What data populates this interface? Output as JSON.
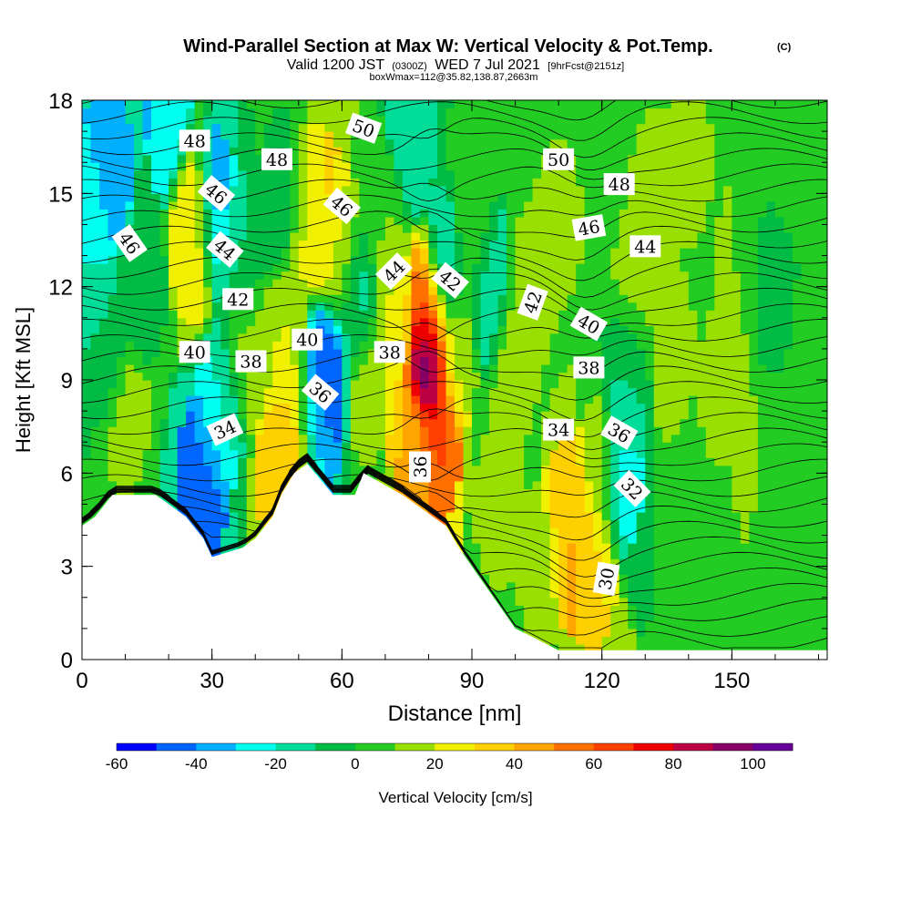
{
  "chart_data": {
    "type": "heatmap",
    "title": "Wind-Parallel Section at Max W: Vertical Velocity & Pot.Temp.",
    "copyright_mark": "(C)",
    "subtitle_main": "Valid 1200 JST",
    "subtitle_utc": "(0300Z)",
    "subtitle_date": "WED 7 Jul 2021",
    "subtitle_fcst": "[9hrFcst@2151z]",
    "subtitle2": "boxWmax=112@35.82,138.87,2663m",
    "xlabel": "Distance [nm]",
    "ylabel": "Height [Kft MSL]",
    "xlim": [
      0,
      172
    ],
    "ylim": [
      0,
      18
    ],
    "x_ticks": [
      0,
      30,
      60,
      90,
      120,
      150
    ],
    "y_ticks": [
      0,
      3,
      6,
      9,
      12,
      15,
      18
    ],
    "x_minor_step": 10,
    "y_minor_step": 1,
    "colorbar": {
      "label": "Vertical Velocity [cm/s]",
      "ticks": [
        -60,
        -40,
        -20,
        0,
        20,
        40,
        60,
        80,
        100
      ],
      "bounds": [
        -60,
        110
      ],
      "step": 10,
      "colors": [
        "#0000ff",
        "#0066ff",
        "#00b0ff",
        "#00ffee",
        "#00dd99",
        "#00bb44",
        "#22cc22",
        "#99e000",
        "#f0f000",
        "#ffd000",
        "#ffa500",
        "#ff7000",
        "#ff4000",
        "#ee0000",
        "#bb0044",
        "#880066",
        "#660099"
      ]
    },
    "w_cells": [
      {
        "x": 2,
        "z": 14.5,
        "w": -20
      },
      {
        "x": 6,
        "z": 16,
        "w": -40
      },
      {
        "x": 6,
        "z": 10,
        "w": -10
      },
      {
        "x": 10,
        "z": 8,
        "w": 15
      },
      {
        "x": 14,
        "z": 12,
        "w": -5
      },
      {
        "x": 20,
        "z": 17.5,
        "w": -30
      },
      {
        "x": 26,
        "z": 14.5,
        "w": 28
      },
      {
        "x": 26,
        "z": 13.5,
        "w": 30
      },
      {
        "x": 30,
        "z": 14.5,
        "w": -40
      },
      {
        "x": 28,
        "z": 6,
        "w": -40
      },
      {
        "x": 27,
        "z": 4.8,
        "w": -50
      },
      {
        "x": 32,
        "z": 8,
        "w": -20
      },
      {
        "x": 36,
        "z": 13,
        "w": -10
      },
      {
        "x": 38,
        "z": 10,
        "w": 12
      },
      {
        "x": 46,
        "z": 5.8,
        "w": 40
      },
      {
        "x": 49,
        "z": 7,
        "w": 35
      },
      {
        "x": 48,
        "z": 10,
        "w": 20
      },
      {
        "x": 46,
        "z": 15,
        "w": -5
      },
      {
        "x": 52,
        "z": 14.5,
        "w": 20
      },
      {
        "x": 56,
        "z": 14.2,
        "w": 33
      },
      {
        "x": 56,
        "z": 9,
        "w": -50
      },
      {
        "x": 54,
        "z": 7.5,
        "w": -30
      },
      {
        "x": 60,
        "z": 13,
        "w": 15
      },
      {
        "x": 64,
        "z": 11.5,
        "w": -15
      },
      {
        "x": 66,
        "z": 9,
        "w": 15
      },
      {
        "x": 70,
        "z": 14,
        "w": 10
      },
      {
        "x": 72,
        "z": 11,
        "w": 22
      },
      {
        "x": 76,
        "z": 17,
        "w": -20
      },
      {
        "x": 76.5,
        "z": 7,
        "w": 40
      },
      {
        "x": 80,
        "z": 9.5,
        "w": 112
      },
      {
        "x": 80,
        "z": 11,
        "w": 55
      },
      {
        "x": 82,
        "z": 7,
        "w": 60
      },
      {
        "x": 84,
        "z": 12.5,
        "w": -20
      },
      {
        "x": 86,
        "z": 10,
        "w": 18
      },
      {
        "x": 90,
        "z": 14,
        "w": 10
      },
      {
        "x": 94,
        "z": 12,
        "w": -15
      },
      {
        "x": 96,
        "z": 5,
        "w": 12
      },
      {
        "x": 100,
        "z": 9.5,
        "w": 15
      },
      {
        "x": 104,
        "z": 12,
        "w": 15
      },
      {
        "x": 110,
        "z": 14,
        "w": 10
      },
      {
        "x": 106,
        "z": 3,
        "w": 15
      },
      {
        "x": 114,
        "z": 3.5,
        "w": 45
      },
      {
        "x": 112,
        "z": 4.5,
        "w": 35
      },
      {
        "x": 118,
        "z": 3,
        "w": 30
      },
      {
        "x": 120,
        "z": 6,
        "w": 15
      },
      {
        "x": 124,
        "z": 6,
        "w": -25
      },
      {
        "x": 126,
        "z": 9,
        "w": -10
      },
      {
        "x": 128,
        "z": 12,
        "w": 12
      },
      {
        "x": 132,
        "z": 15,
        "w": 10
      },
      {
        "x": 136,
        "z": 10,
        "w": 12
      },
      {
        "x": 140,
        "z": 16,
        "w": 12
      },
      {
        "x": 140,
        "z": 5,
        "w": 8
      },
      {
        "x": 148,
        "z": 9,
        "w": 12
      },
      {
        "x": 152,
        "z": 13,
        "w": 10
      },
      {
        "x": 156,
        "z": 6,
        "w": 10
      },
      {
        "x": 160,
        "z": 12,
        "w": -8
      },
      {
        "x": 164,
        "z": 16,
        "w": 10
      },
      {
        "x": 166,
        "z": 3,
        "w": 5
      },
      {
        "x": 168,
        "z": 10,
        "w": 8
      },
      {
        "x": 170,
        "z": 14,
        "w": 5
      }
    ],
    "terrain": [
      [
        0,
        4.3
      ],
      [
        3,
        4.6
      ],
      [
        7,
        5.3
      ],
      [
        17,
        5.3
      ],
      [
        24,
        4.6
      ],
      [
        28,
        3.9
      ],
      [
        30,
        3.3
      ],
      [
        37,
        3.6
      ],
      [
        40,
        3.9
      ],
      [
        44,
        4.6
      ],
      [
        46,
        5.3
      ],
      [
        49,
        6.0
      ],
      [
        52,
        6.3
      ],
      [
        58,
        5.3
      ],
      [
        63,
        5.3
      ],
      [
        65,
        6.0
      ],
      [
        74,
        5.3
      ],
      [
        78,
        4.9
      ],
      [
        81,
        4.6
      ],
      [
        84,
        4.3
      ],
      [
        87,
        3.6
      ],
      [
        90,
        3.0
      ],
      [
        95,
        2.0
      ],
      [
        100,
        1.0
      ],
      [
        103,
        0.8
      ],
      [
        110,
        0.3
      ],
      [
        122,
        0.3
      ],
      [
        172,
        0.3
      ]
    ],
    "theta_levels": [
      30,
      32,
      34,
      36,
      38,
      40,
      42,
      44,
      46,
      48,
      50
    ],
    "contour_labels": [
      {
        "text": "48",
        "x": 26,
        "z": 16.7,
        "rot": 0
      },
      {
        "text": "46",
        "x": 31,
        "z": 15.0,
        "rot": 40
      },
      {
        "text": "46",
        "x": 11,
        "z": 13.4,
        "rot": 55
      },
      {
        "text": "44",
        "x": 33,
        "z": 13.2,
        "rot": 40
      },
      {
        "text": "48",
        "x": 45,
        "z": 16.1,
        "rot": 0
      },
      {
        "text": "50",
        "x": 65,
        "z": 17.1,
        "rot": 20
      },
      {
        "text": "46",
        "x": 60,
        "z": 14.6,
        "rot": 40
      },
      {
        "text": "42",
        "x": 36,
        "z": 11.6,
        "rot": 0
      },
      {
        "text": "44",
        "x": 72,
        "z": 12.5,
        "rot": -45
      },
      {
        "text": "42",
        "x": 85,
        "z": 12.2,
        "rot": 40
      },
      {
        "text": "40",
        "x": 26,
        "z": 9.9,
        "rot": 0
      },
      {
        "text": "38",
        "x": 39,
        "z": 9.6,
        "rot": 0
      },
      {
        "text": "40",
        "x": 52,
        "z": 10.3,
        "rot": 0
      },
      {
        "text": "36",
        "x": 55,
        "z": 8.6,
        "rot": 40
      },
      {
        "text": "38",
        "x": 71,
        "z": 9.9,
        "rot": 0
      },
      {
        "text": "34",
        "x": 33,
        "z": 7.4,
        "rot": -25
      },
      {
        "text": "36",
        "x": 78,
        "z": 6.2,
        "rot": -90
      },
      {
        "text": "42",
        "x": 104,
        "z": 11.5,
        "rot": -70
      },
      {
        "text": "40",
        "x": 117,
        "z": 10.8,
        "rot": 30
      },
      {
        "text": "38",
        "x": 117,
        "z": 9.4,
        "rot": 0
      },
      {
        "text": "34",
        "x": 110,
        "z": 7.4,
        "rot": 0
      },
      {
        "text": "36",
        "x": 124,
        "z": 7.3,
        "rot": 30
      },
      {
        "text": "32",
        "x": 127,
        "z": 5.5,
        "rot": 45
      },
      {
        "text": "30",
        "x": 121,
        "z": 2.6,
        "rot": -80
      },
      {
        "text": "50",
        "x": 110,
        "z": 16.1,
        "rot": 0
      },
      {
        "text": "48",
        "x": 124,
        "z": 15.3,
        "rot": 0
      },
      {
        "text": "46",
        "x": 117,
        "z": 13.9,
        "rot": -10
      },
      {
        "text": "44",
        "x": 130,
        "z": 13.3,
        "rot": 0
      }
    ]
  }
}
